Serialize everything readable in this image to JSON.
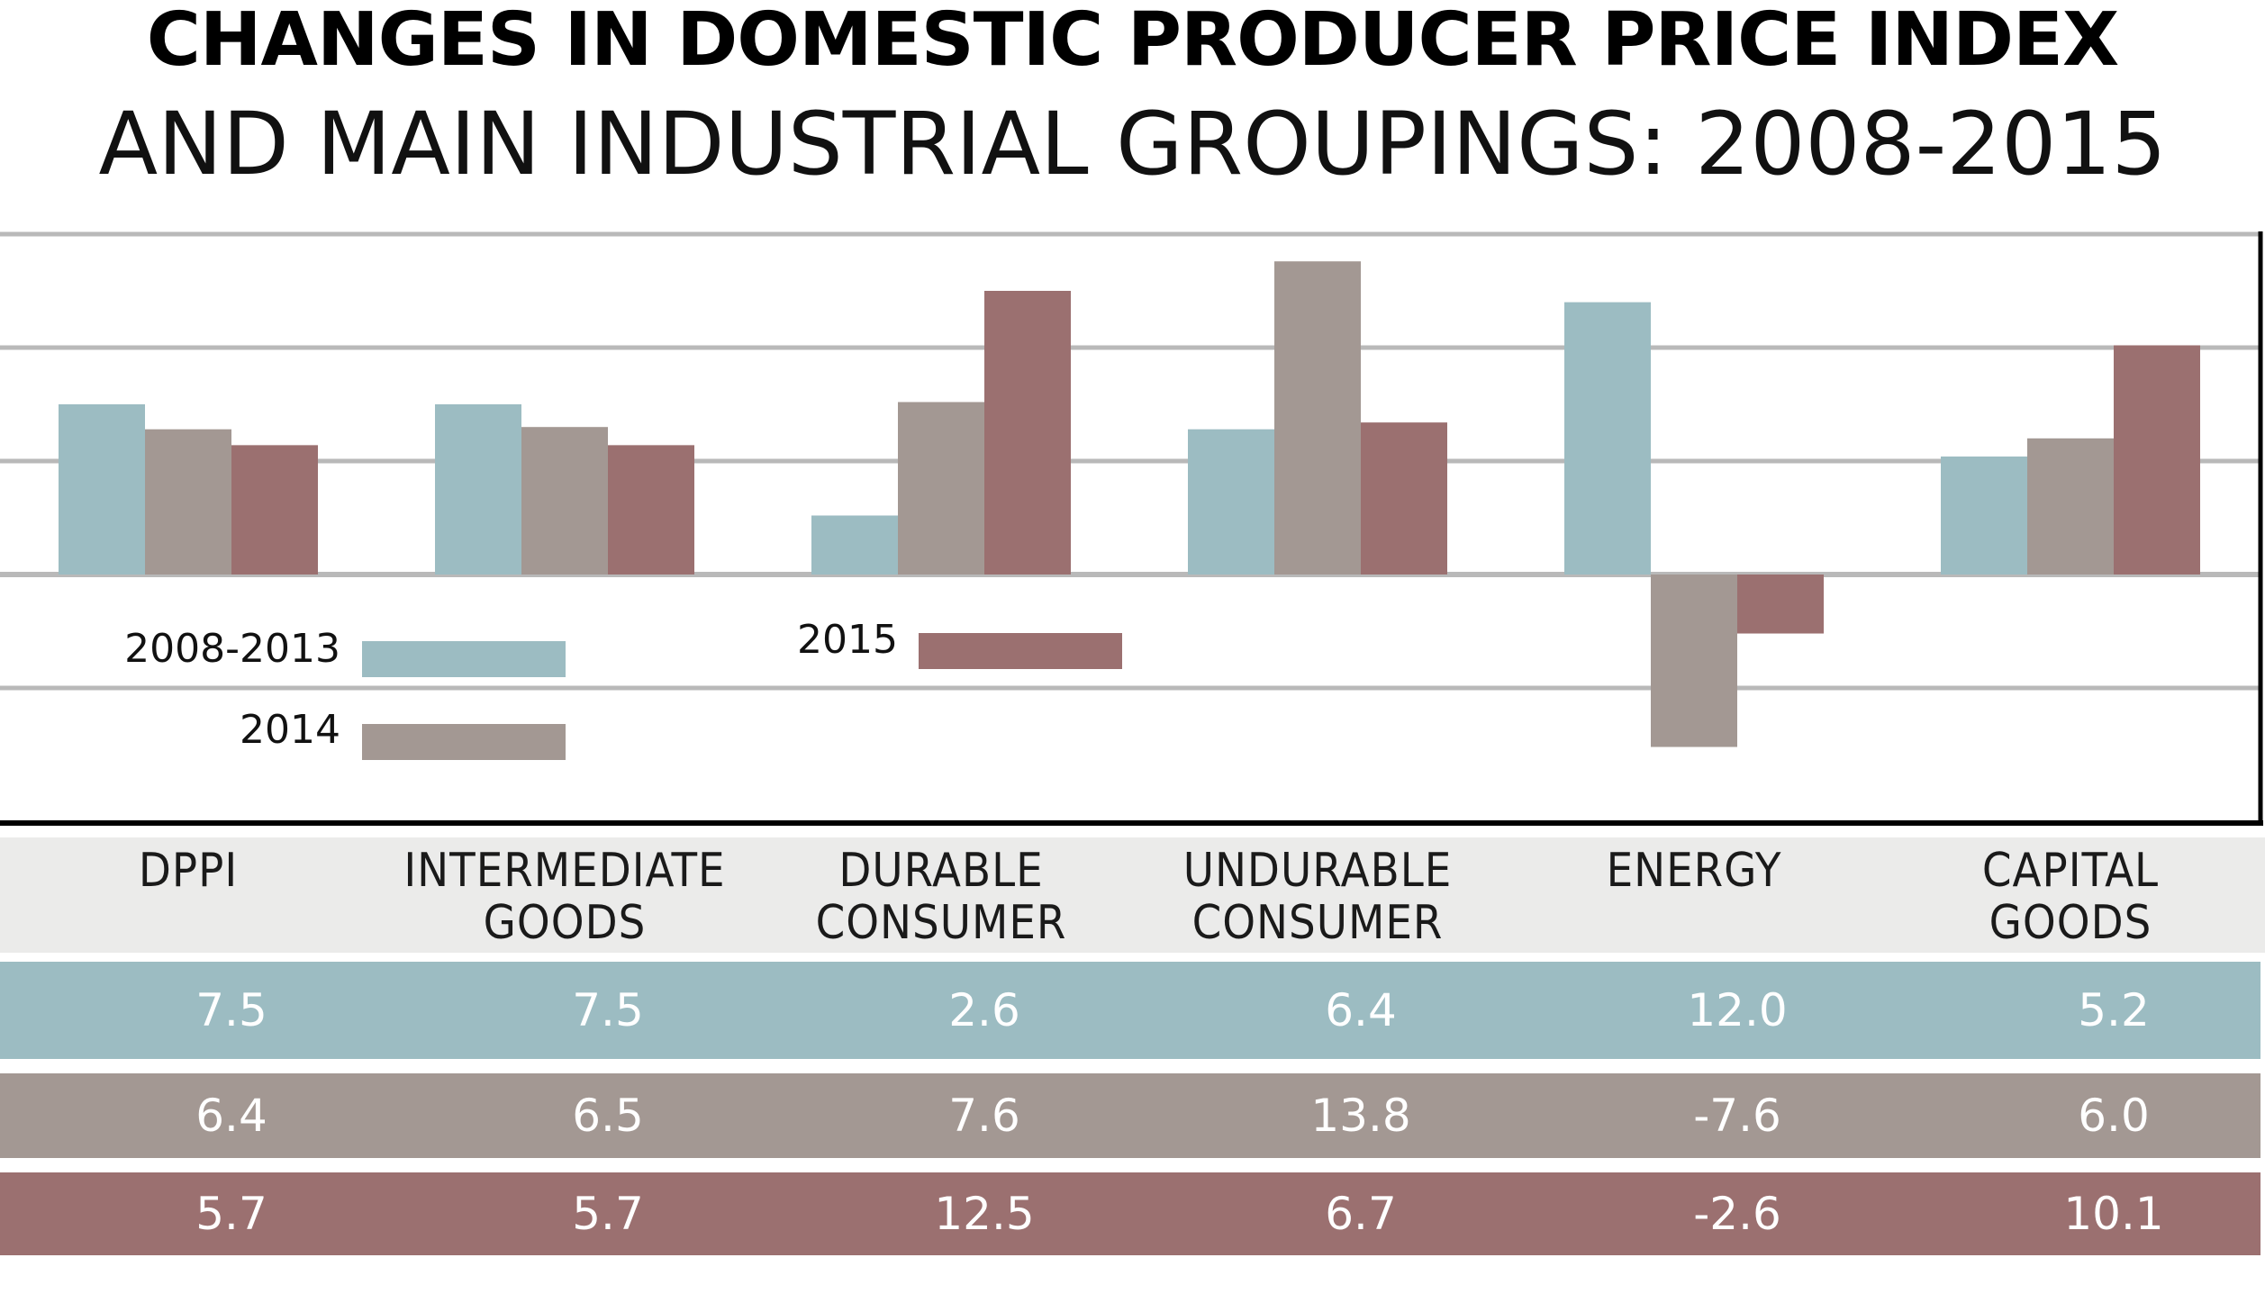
{
  "title": {
    "line1": "CHANGES IN DOMESTIC PRODUCER PRICE INDEX",
    "line2": "AND MAIN INDUSTRIAL GROUPINGS: 2008-2015"
  },
  "colors": {
    "series_2008_2013": "#9cbcc2",
    "series_2014": "#a39893",
    "series_2015": "#9b7070",
    "gridline": "#b9b9b9",
    "axis": "#000000"
  },
  "chart_data": {
    "type": "bar",
    "title": "CHANGES IN DOMESTIC PRODUCER PRICE INDEX AND MAIN INDUSTRIAL GROUPINGS: 2008-2015",
    "categories": [
      "DPPI",
      "INTERMEDIATE GOODS",
      "DURABLE CONSUMER",
      "UNDURABLE CONSUMER",
      "ENERGY",
      "CAPITAL GOODS"
    ],
    "category_lines": [
      [
        "DPPI"
      ],
      [
        "INTERMEDIATE",
        "GOODS"
      ],
      [
        "DURABLE",
        "CONSUMER"
      ],
      [
        "UNDURABLE",
        "CONSUMER"
      ],
      [
        "ENERGY"
      ],
      [
        "CAPITAL",
        "GOODS"
      ]
    ],
    "series": [
      {
        "name": "2008-2013",
        "values": [
          7.5,
          7.5,
          2.6,
          6.4,
          12.0,
          5.2
        ],
        "labels": [
          "7.5",
          "7.5",
          "2.6",
          "6.4",
          "12.0",
          "5.2"
        ]
      },
      {
        "name": "2014",
        "values": [
          6.4,
          6.5,
          7.6,
          13.8,
          -7.6,
          6.0
        ],
        "labels": [
          "6.4",
          "6.5",
          "7.6",
          "13.8",
          "-7.6",
          "6.0"
        ]
      },
      {
        "name": "2015",
        "values": [
          5.7,
          5.7,
          12.5,
          6.7,
          -2.6,
          10.1
        ],
        "labels": [
          "5.7",
          "5.7",
          "12.5",
          "6.7",
          "-2.6",
          "10.1"
        ]
      }
    ],
    "ylim": [
      -10,
      15
    ],
    "gridlines": [
      -10,
      -5,
      0,
      5,
      10,
      15
    ],
    "xlabel": "",
    "ylabel": "",
    "legend": {
      "position": "bottom-left",
      "entries": [
        "2008-2013",
        "2014",
        "2015"
      ]
    }
  }
}
